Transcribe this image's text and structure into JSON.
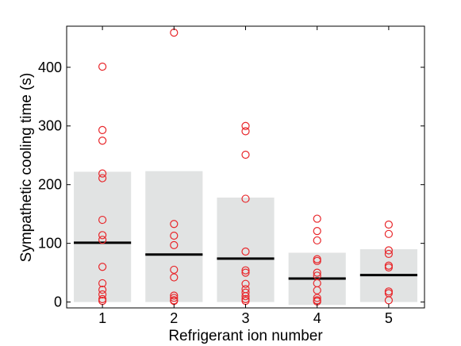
{
  "chart_data": {
    "type": "scatter",
    "xlabel": "Refrigerant ion number",
    "ylabel": "Sympathetic cooling time (s)",
    "xlim": [
      0.5,
      5.5
    ],
    "ylim": [
      -10,
      470
    ],
    "x_ticks": [
      1,
      2,
      3,
      4,
      5
    ],
    "x_tick_labels": [
      "1",
      "2",
      "3",
      "4",
      "5"
    ],
    "y_ticks": [
      0,
      100,
      200,
      300,
      400
    ],
    "y_tick_labels": [
      "0",
      "100",
      "200",
      "300",
      "400"
    ],
    "grid": false,
    "legend": "none",
    "bars": [
      {
        "x": 1,
        "low": 0,
        "high": 222
      },
      {
        "x": 2,
        "low": 0,
        "high": 223
      },
      {
        "x": 3,
        "low": 0,
        "high": 178
      },
      {
        "x": 4,
        "low": -5,
        "high": 84
      },
      {
        "x": 5,
        "low": 0,
        "high": 90
      }
    ],
    "bar_color": "#e1e3e3",
    "medians": [
      {
        "x": 1,
        "value": 101
      },
      {
        "x": 2,
        "value": 81
      },
      {
        "x": 3,
        "value": 74
      },
      {
        "x": 4,
        "value": 40
      },
      {
        "x": 5,
        "value": 46
      }
    ],
    "median_color": "#000000",
    "points": [
      {
        "x": 1,
        "values": [
          401,
          293,
          275,
          219,
          211,
          140,
          114,
          106,
          60,
          32,
          21,
          13,
          5,
          2
        ]
      },
      {
        "x": 2,
        "values": [
          459,
          133,
          113,
          97,
          55,
          42,
          11,
          7,
          3,
          2
        ]
      },
      {
        "x": 3,
        "values": [
          300,
          291,
          251,
          176,
          86,
          54,
          50,
          31,
          22,
          16,
          10,
          5,
          2
        ]
      },
      {
        "x": 4,
        "values": [
          142,
          121,
          105,
          73,
          70,
          50,
          45,
          32,
          20,
          7,
          3,
          1
        ]
      },
      {
        "x": 5,
        "values": [
          132,
          116,
          88,
          82,
          62,
          59,
          18,
          15,
          3
        ]
      }
    ],
    "point_color": "#e8262a"
  }
}
